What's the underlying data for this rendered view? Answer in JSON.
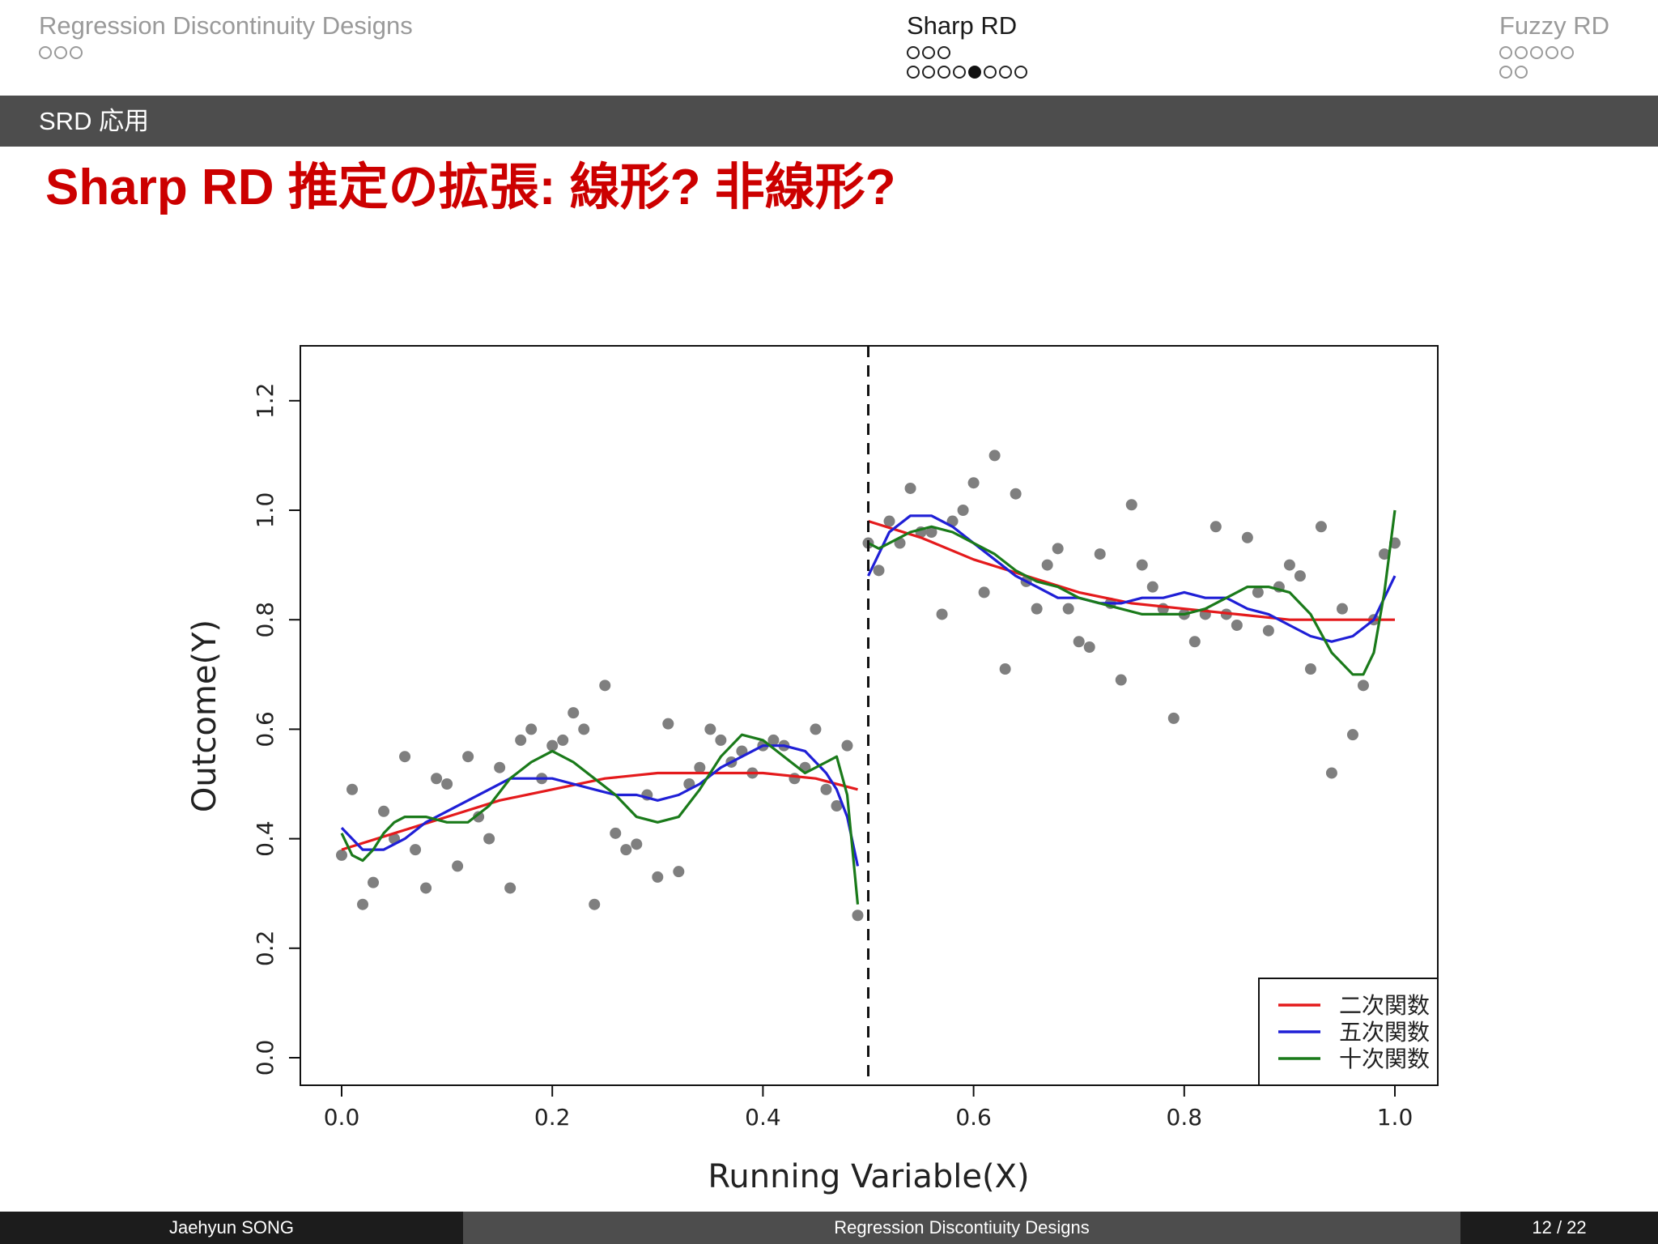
{
  "header": {
    "sections": [
      {
        "title": "Regression Discontinuity Designs",
        "active": false,
        "dot_rows": [
          {
            "count": 3,
            "filled": -1
          }
        ]
      },
      {
        "title": "Sharp RD",
        "active": true,
        "dot_rows": [
          {
            "count": 3,
            "filled": -1
          },
          {
            "count": 8,
            "filled": 4
          }
        ]
      },
      {
        "title": "Fuzzy RD",
        "active": false,
        "dot_rows": [
          {
            "count": 5,
            "filled": -1
          },
          {
            "count": 2,
            "filled": -1
          }
        ]
      }
    ],
    "subsection": "SRD 応用"
  },
  "slide": {
    "title": "Sharp RD 推定の拡張: 線形? 非線形?"
  },
  "chart_data": {
    "type": "scatter",
    "xlabel": "Running Variable(X)",
    "ylabel": "Outcome(Y)",
    "xlim": [
      0.0,
      1.0
    ],
    "ylim": [
      0.0,
      1.2
    ],
    "xticks": [
      "0.0",
      "0.2",
      "0.4",
      "0.6",
      "0.8",
      "1.0"
    ],
    "yticks": [
      "0.0",
      "0.2",
      "0.4",
      "0.6",
      "0.8",
      "1.0",
      "1.2"
    ],
    "cutoff": 0.5,
    "legend_position": "bottom-right",
    "points": [
      [
        0.0,
        0.37
      ],
      [
        0.01,
        0.49
      ],
      [
        0.02,
        0.28
      ],
      [
        0.03,
        0.32
      ],
      [
        0.04,
        0.45
      ],
      [
        0.05,
        0.4
      ],
      [
        0.06,
        0.55
      ],
      [
        0.07,
        0.38
      ],
      [
        0.08,
        0.31
      ],
      [
        0.09,
        0.51
      ],
      [
        0.1,
        0.5
      ],
      [
        0.11,
        0.35
      ],
      [
        0.12,
        0.55
      ],
      [
        0.13,
        0.44
      ],
      [
        0.14,
        0.4
      ],
      [
        0.15,
        0.53
      ],
      [
        0.16,
        0.31
      ],
      [
        0.17,
        0.58
      ],
      [
        0.18,
        0.6
      ],
      [
        0.19,
        0.51
      ],
      [
        0.2,
        0.57
      ],
      [
        0.21,
        0.58
      ],
      [
        0.22,
        0.63
      ],
      [
        0.23,
        0.6
      ],
      [
        0.24,
        0.28
      ],
      [
        0.25,
        0.68
      ],
      [
        0.26,
        0.41
      ],
      [
        0.27,
        0.38
      ],
      [
        0.28,
        0.39
      ],
      [
        0.29,
        0.48
      ],
      [
        0.3,
        0.33
      ],
      [
        0.31,
        0.61
      ],
      [
        0.32,
        0.34
      ],
      [
        0.33,
        0.5
      ],
      [
        0.34,
        0.53
      ],
      [
        0.35,
        0.6
      ],
      [
        0.36,
        0.58
      ],
      [
        0.37,
        0.54
      ],
      [
        0.38,
        0.56
      ],
      [
        0.39,
        0.52
      ],
      [
        0.4,
        0.57
      ],
      [
        0.41,
        0.58
      ],
      [
        0.42,
        0.57
      ],
      [
        0.43,
        0.51
      ],
      [
        0.44,
        0.53
      ],
      [
        0.45,
        0.6
      ],
      [
        0.46,
        0.49
      ],
      [
        0.47,
        0.46
      ],
      [
        0.48,
        0.57
      ],
      [
        0.49,
        0.26
      ],
      [
        0.5,
        0.94
      ],
      [
        0.51,
        0.89
      ],
      [
        0.52,
        0.98
      ],
      [
        0.53,
        0.94
      ],
      [
        0.54,
        1.04
      ],
      [
        0.55,
        0.96
      ],
      [
        0.56,
        0.96
      ],
      [
        0.57,
        0.81
      ],
      [
        0.58,
        0.98
      ],
      [
        0.59,
        1.0
      ],
      [
        0.6,
        1.05
      ],
      [
        0.61,
        0.85
      ],
      [
        0.62,
        1.1
      ],
      [
        0.63,
        0.71
      ],
      [
        0.64,
        1.03
      ],
      [
        0.65,
        0.87
      ],
      [
        0.66,
        0.82
      ],
      [
        0.67,
        0.9
      ],
      [
        0.68,
        0.93
      ],
      [
        0.69,
        0.82
      ],
      [
        0.7,
        0.76
      ],
      [
        0.71,
        0.75
      ],
      [
        0.72,
        0.92
      ],
      [
        0.73,
        0.83
      ],
      [
        0.74,
        0.69
      ],
      [
        0.75,
        1.01
      ],
      [
        0.76,
        0.9
      ],
      [
        0.77,
        0.86
      ],
      [
        0.78,
        0.82
      ],
      [
        0.79,
        0.62
      ],
      [
        0.8,
        0.81
      ],
      [
        0.81,
        0.76
      ],
      [
        0.82,
        0.81
      ],
      [
        0.83,
        0.97
      ],
      [
        0.84,
        0.81
      ],
      [
        0.85,
        0.79
      ],
      [
        0.86,
        0.95
      ],
      [
        0.87,
        0.85
      ],
      [
        0.88,
        0.78
      ],
      [
        0.89,
        0.86
      ],
      [
        0.9,
        0.9
      ],
      [
        0.91,
        0.88
      ],
      [
        0.92,
        0.71
      ],
      [
        0.93,
        0.97
      ],
      [
        0.94,
        0.52
      ],
      [
        0.95,
        0.82
      ],
      [
        0.96,
        0.59
      ],
      [
        0.97,
        0.68
      ],
      [
        0.98,
        0.8
      ],
      [
        0.99,
        0.92
      ],
      [
        1.0,
        0.94
      ]
    ],
    "series": [
      {
        "name": "二次関数",
        "color": "#e41a1c",
        "segments": [
          [
            [
              0.0,
              0.38
            ],
            [
              0.05,
              0.41
            ],
            [
              0.1,
              0.44
            ],
            [
              0.15,
              0.47
            ],
            [
              0.2,
              0.49
            ],
            [
              0.25,
              0.51
            ],
            [
              0.3,
              0.52
            ],
            [
              0.35,
              0.52
            ],
            [
              0.4,
              0.52
            ],
            [
              0.45,
              0.51
            ],
            [
              0.49,
              0.49
            ]
          ],
          [
            [
              0.5,
              0.98
            ],
            [
              0.55,
              0.95
            ],
            [
              0.6,
              0.91
            ],
            [
              0.65,
              0.88
            ],
            [
              0.7,
              0.85
            ],
            [
              0.75,
              0.83
            ],
            [
              0.8,
              0.82
            ],
            [
              0.85,
              0.81
            ],
            [
              0.9,
              0.8
            ],
            [
              0.95,
              0.8
            ],
            [
              1.0,
              0.8
            ]
          ]
        ]
      },
      {
        "name": "五次関数",
        "color": "#1f1fd6",
        "segments": [
          [
            [
              0.0,
              0.42
            ],
            [
              0.02,
              0.38
            ],
            [
              0.04,
              0.38
            ],
            [
              0.06,
              0.4
            ],
            [
              0.08,
              0.43
            ],
            [
              0.1,
              0.45
            ],
            [
              0.12,
              0.47
            ],
            [
              0.14,
              0.49
            ],
            [
              0.16,
              0.51
            ],
            [
              0.18,
              0.51
            ],
            [
              0.2,
              0.51
            ],
            [
              0.22,
              0.5
            ],
            [
              0.24,
              0.49
            ],
            [
              0.26,
              0.48
            ],
            [
              0.28,
              0.48
            ],
            [
              0.3,
              0.47
            ],
            [
              0.32,
              0.48
            ],
            [
              0.34,
              0.5
            ],
            [
              0.36,
              0.53
            ],
            [
              0.38,
              0.55
            ],
            [
              0.4,
              0.57
            ],
            [
              0.42,
              0.57
            ],
            [
              0.44,
              0.56
            ],
            [
              0.46,
              0.52
            ],
            [
              0.47,
              0.49
            ],
            [
              0.48,
              0.44
            ],
            [
              0.49,
              0.35
            ]
          ],
          [
            [
              0.5,
              0.88
            ],
            [
              0.51,
              0.92
            ],
            [
              0.52,
              0.96
            ],
            [
              0.54,
              0.99
            ],
            [
              0.56,
              0.99
            ],
            [
              0.58,
              0.97
            ],
            [
              0.6,
              0.94
            ],
            [
              0.62,
              0.91
            ],
            [
              0.64,
              0.88
            ],
            [
              0.66,
              0.86
            ],
            [
              0.68,
              0.84
            ],
            [
              0.7,
              0.84
            ],
            [
              0.72,
              0.83
            ],
            [
              0.74,
              0.83
            ],
            [
              0.76,
              0.84
            ],
            [
              0.78,
              0.84
            ],
            [
              0.8,
              0.85
            ],
            [
              0.82,
              0.84
            ],
            [
              0.84,
              0.84
            ],
            [
              0.86,
              0.82
            ],
            [
              0.88,
              0.81
            ],
            [
              0.9,
              0.79
            ],
            [
              0.92,
              0.77
            ],
            [
              0.94,
              0.76
            ],
            [
              0.96,
              0.77
            ],
            [
              0.98,
              0.8
            ],
            [
              1.0,
              0.88
            ]
          ]
        ]
      },
      {
        "name": "十次関数",
        "color": "#1a7a1a",
        "segments": [
          [
            [
              0.0,
              0.41
            ],
            [
              0.01,
              0.37
            ],
            [
              0.02,
              0.36
            ],
            [
              0.03,
              0.38
            ],
            [
              0.04,
              0.41
            ],
            [
              0.05,
              0.43
            ],
            [
              0.06,
              0.44
            ],
            [
              0.08,
              0.44
            ],
            [
              0.1,
              0.43
            ],
            [
              0.12,
              0.43
            ],
            [
              0.14,
              0.46
            ],
            [
              0.16,
              0.51
            ],
            [
              0.18,
              0.54
            ],
            [
              0.2,
              0.56
            ],
            [
              0.22,
              0.54
            ],
            [
              0.24,
              0.51
            ],
            [
              0.26,
              0.48
            ],
            [
              0.28,
              0.44
            ],
            [
              0.3,
              0.43
            ],
            [
              0.32,
              0.44
            ],
            [
              0.34,
              0.49
            ],
            [
              0.36,
              0.55
            ],
            [
              0.38,
              0.59
            ],
            [
              0.4,
              0.58
            ],
            [
              0.42,
              0.55
            ],
            [
              0.44,
              0.52
            ],
            [
              0.46,
              0.54
            ],
            [
              0.47,
              0.55
            ],
            [
              0.48,
              0.48
            ],
            [
              0.49,
              0.28
            ]
          ],
          [
            [
              0.5,
              0.94
            ],
            [
              0.51,
              0.93
            ],
            [
              0.52,
              0.94
            ],
            [
              0.54,
              0.96
            ],
            [
              0.56,
              0.97
            ],
            [
              0.58,
              0.96
            ],
            [
              0.6,
              0.94
            ],
            [
              0.62,
              0.92
            ],
            [
              0.64,
              0.89
            ],
            [
              0.66,
              0.87
            ],
            [
              0.68,
              0.86
            ],
            [
              0.7,
              0.84
            ],
            [
              0.72,
              0.83
            ],
            [
              0.74,
              0.82
            ],
            [
              0.76,
              0.81
            ],
            [
              0.78,
              0.81
            ],
            [
              0.8,
              0.81
            ],
            [
              0.82,
              0.82
            ],
            [
              0.84,
              0.84
            ],
            [
              0.86,
              0.86
            ],
            [
              0.88,
              0.86
            ],
            [
              0.9,
              0.85
            ],
            [
              0.92,
              0.81
            ],
            [
              0.94,
              0.74
            ],
            [
              0.96,
              0.7
            ],
            [
              0.97,
              0.7
            ],
            [
              0.98,
              0.74
            ],
            [
              0.99,
              0.85
            ],
            [
              1.0,
              1.0
            ]
          ]
        ]
      }
    ]
  },
  "footer": {
    "author": "Jaehyun SONG",
    "short_title": "Regression Discontiuity Designs",
    "page": "12 / 22"
  }
}
